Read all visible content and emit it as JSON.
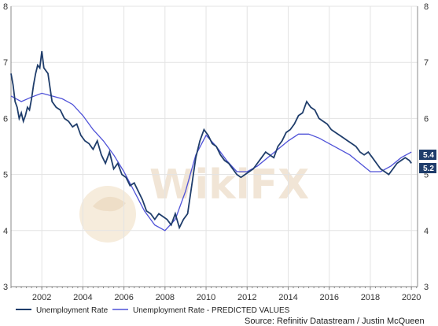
{
  "watermark": {
    "text": "WikiFX"
  },
  "source_text": "Source: Refinitiv Datastream / Justin McQueen",
  "colors": {
    "actual": "#1f3d6b",
    "predicted": "#4f52d8",
    "grid": "#e3e3e3",
    "axis": "#888888"
  },
  "chart_data": {
    "type": "line",
    "title": "",
    "xlabel": "",
    "ylabel": "",
    "xlim": [
      2000.5,
      2020.3
    ],
    "ylim": [
      3,
      8
    ],
    "x_ticks": [
      "2002",
      "2004",
      "2006",
      "2008",
      "2010",
      "2012",
      "2014",
      "2016",
      "2018",
      "2020"
    ],
    "y_ticks_left": [
      "3",
      "4",
      "5",
      "6",
      "7",
      "8"
    ],
    "y_ticks_right": [
      "3",
      "4",
      "5",
      "6",
      "7",
      "8"
    ],
    "grid": true,
    "legend_position": "bottom-left",
    "last_value_labels": [
      "5.4",
      "5.2"
    ],
    "series": [
      {
        "name": "Unemployment Rate",
        "color": "#1f3d6b",
        "x": [
          2000.5,
          2000.6,
          2000.7,
          2000.8,
          2000.9,
          2001.0,
          2001.1,
          2001.2,
          2001.3,
          2001.4,
          2001.5,
          2001.6,
          2001.7,
          2001.8,
          2001.9,
          2002.0,
          2002.1,
          2002.3,
          2002.5,
          2002.7,
          2002.9,
          2003.1,
          2003.3,
          2003.5,
          2003.7,
          2003.9,
          2004.1,
          2004.3,
          2004.5,
          2004.7,
          2004.9,
          2005.1,
          2005.3,
          2005.5,
          2005.7,
          2005.9,
          2006.1,
          2006.3,
          2006.5,
          2006.7,
          2006.9,
          2007.1,
          2007.3,
          2007.5,
          2007.7,
          2007.9,
          2008.1,
          2008.3,
          2008.5,
          2008.7,
          2008.9,
          2009.1,
          2009.3,
          2009.5,
          2009.7,
          2009.9,
          2010.1,
          2010.3,
          2010.5,
          2010.7,
          2010.9,
          2011.1,
          2011.3,
          2011.5,
          2011.7,
          2011.9,
          2012.1,
          2012.3,
          2012.5,
          2012.7,
          2012.9,
          2013.1,
          2013.3,
          2013.5,
          2013.7,
          2013.9,
          2014.1,
          2014.3,
          2014.5,
          2014.7,
          2014.9,
          2015.1,
          2015.3,
          2015.5,
          2015.7,
          2015.9,
          2016.1,
          2016.3,
          2016.5,
          2016.7,
          2016.9,
          2017.1,
          2017.3,
          2017.5,
          2017.7,
          2017.9,
          2018.1,
          2018.3,
          2018.5,
          2018.7,
          2018.9,
          2019.1,
          2019.3,
          2019.5,
          2019.7,
          2019.9,
          2020.0
        ],
        "values": [
          6.8,
          6.6,
          6.3,
          6.2,
          6.0,
          6.1,
          5.95,
          6.05,
          6.2,
          6.15,
          6.35,
          6.6,
          6.8,
          6.95,
          6.9,
          7.2,
          6.9,
          6.8,
          6.3,
          6.2,
          6.15,
          6.0,
          5.95,
          5.85,
          5.9,
          5.7,
          5.6,
          5.55,
          5.45,
          5.6,
          5.35,
          5.2,
          5.4,
          5.1,
          5.2,
          5.0,
          4.95,
          4.8,
          4.85,
          4.7,
          4.55,
          4.35,
          4.3,
          4.2,
          4.3,
          4.25,
          4.2,
          4.1,
          4.3,
          4.05,
          4.2,
          4.3,
          4.8,
          5.3,
          5.6,
          5.8,
          5.7,
          5.55,
          5.5,
          5.35,
          5.25,
          5.2,
          5.1,
          5.0,
          4.95,
          5.0,
          5.05,
          5.1,
          5.2,
          5.3,
          5.4,
          5.35,
          5.3,
          5.5,
          5.6,
          5.75,
          5.8,
          5.9,
          6.05,
          6.1,
          6.3,
          6.2,
          6.15,
          6.0,
          5.95,
          5.9,
          5.8,
          5.75,
          5.7,
          5.65,
          5.6,
          5.55,
          5.5,
          5.4,
          5.35,
          5.4,
          5.3,
          5.2,
          5.1,
          5.05,
          5.0,
          5.1,
          5.2,
          5.25,
          5.3,
          5.25,
          5.2
        ]
      },
      {
        "name": "Unemployment Rate - PREDICTED VALUES",
        "color": "#4f52d8",
        "x": [
          2000.5,
          2001.0,
          2001.5,
          2002.0,
          2002.5,
          2003.0,
          2003.5,
          2004.0,
          2004.5,
          2005.0,
          2005.5,
          2006.0,
          2006.5,
          2007.0,
          2007.5,
          2008.0,
          2008.5,
          2009.0,
          2009.5,
          2010.0,
          2010.5,
          2011.0,
          2011.5,
          2012.0,
          2012.5,
          2013.0,
          2013.5,
          2014.0,
          2014.5,
          2015.0,
          2015.5,
          2016.0,
          2016.5,
          2017.0,
          2017.5,
          2018.0,
          2018.5,
          2019.0,
          2019.5,
          2020.0
        ],
        "values": [
          6.4,
          6.3,
          6.38,
          6.45,
          6.4,
          6.35,
          6.25,
          6.05,
          5.8,
          5.6,
          5.35,
          5.05,
          4.7,
          4.35,
          4.1,
          4.0,
          4.2,
          4.7,
          5.35,
          5.7,
          5.5,
          5.25,
          5.05,
          5.05,
          5.15,
          5.3,
          5.45,
          5.6,
          5.72,
          5.72,
          5.65,
          5.55,
          5.45,
          5.35,
          5.2,
          5.05,
          5.05,
          5.15,
          5.3,
          5.4
        ]
      }
    ]
  }
}
